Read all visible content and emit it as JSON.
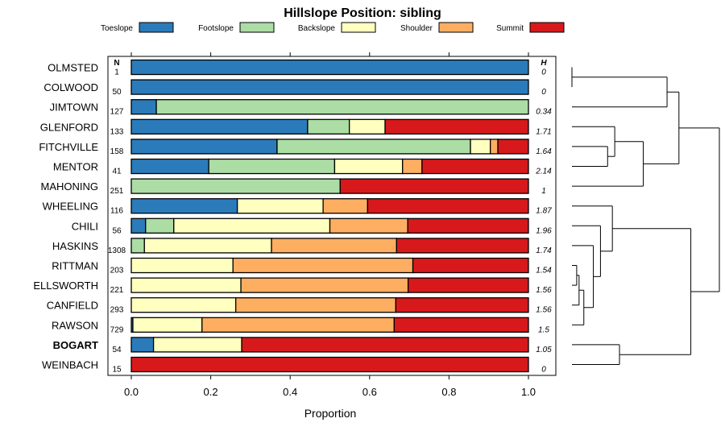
{
  "chart_data": {
    "type": "stacked-bar-horizontal",
    "title": "Hillslope Position: sibling",
    "xlabel": "Proportion",
    "xlim": [
      0,
      1
    ],
    "xticks": [
      "0.0",
      "0.2",
      "0.4",
      "0.6",
      "0.8",
      "1.0"
    ],
    "n_header": "N",
    "h_header": "H",
    "legend": [
      {
        "name": "Toeslope",
        "color": "#2b7bba"
      },
      {
        "name": "Footslope",
        "color": "#abdda4"
      },
      {
        "name": "Backslope",
        "color": "#ffffbf"
      },
      {
        "name": "Shoulder",
        "color": "#fdae61"
      },
      {
        "name": "Summit",
        "color": "#d7191c"
      }
    ],
    "rows": [
      {
        "label": "OLMSTED",
        "bold": false,
        "n": "1",
        "h": "0",
        "values": [
          1.0,
          0,
          0,
          0,
          0
        ]
      },
      {
        "label": "COLWOOD",
        "bold": false,
        "n": "50",
        "h": "0",
        "values": [
          1.0,
          0,
          0,
          0,
          0
        ]
      },
      {
        "label": "JIMTOWN",
        "bold": false,
        "n": "127",
        "h": "0.34",
        "values": [
          0.063,
          0.937,
          0,
          0,
          0
        ]
      },
      {
        "label": "GLENFORD",
        "bold": false,
        "n": "133",
        "h": "1.71",
        "values": [
          0.444,
          0.105,
          0.09,
          0,
          0.361
        ]
      },
      {
        "label": "FITCHVILLE",
        "bold": false,
        "n": "158",
        "h": "1.64",
        "values": [
          0.367,
          0.487,
          0.05,
          0.019,
          0.077
        ]
      },
      {
        "label": "MENTOR",
        "bold": false,
        "n": "41",
        "h": "2.14",
        "values": [
          0.195,
          0.317,
          0.171,
          0.049,
          0.268
        ]
      },
      {
        "label": "MAHONING",
        "bold": false,
        "n": "251",
        "h": "1",
        "values": [
          0,
          0.526,
          0,
          0,
          0.474
        ]
      },
      {
        "label": "WHEELING",
        "bold": false,
        "n": "116",
        "h": "1.87",
        "values": [
          0.267,
          0,
          0.216,
          0.112,
          0.405
        ]
      },
      {
        "label": "CHILI",
        "bold": false,
        "n": "56",
        "h": "1.96",
        "values": [
          0.036,
          0.071,
          0.393,
          0.196,
          0.304
        ]
      },
      {
        "label": "HASKINS",
        "bold": false,
        "n": "1308",
        "h": "1.74",
        "values": [
          0,
          0.033,
          0.32,
          0.315,
          0.332
        ]
      },
      {
        "label": "RITTMAN",
        "bold": false,
        "n": "203",
        "h": "1.54",
        "values": [
          0,
          0,
          0.256,
          0.453,
          0.291
        ]
      },
      {
        "label": "ELLSWORTH",
        "bold": false,
        "n": "221",
        "h": "1.56",
        "values": [
          0,
          0,
          0.276,
          0.421,
          0.303
        ]
      },
      {
        "label": "CANFIELD",
        "bold": false,
        "n": "293",
        "h": "1.56",
        "values": [
          0,
          0,
          0.263,
          0.403,
          0.334
        ]
      },
      {
        "label": "RAWSON",
        "bold": false,
        "n": "729",
        "h": "1.5",
        "values": [
          0.004,
          0,
          0.174,
          0.484,
          0.338
        ]
      },
      {
        "label": "BOGART",
        "bold": true,
        "n": "54",
        "h": "1.05",
        "values": [
          0.056,
          0,
          0.222,
          0,
          0.722
        ]
      },
      {
        "label": "WEINBACH",
        "bold": false,
        "n": "15",
        "h": "0",
        "values": [
          0,
          0,
          0,
          0,
          1.0
        ]
      }
    ],
    "dendrogram": {
      "orientation": "right",
      "merges": [
        {
          "left": "OLMSTED",
          "right": "COLWOOD",
          "height": 0.0
        },
        {
          "left": "FITCHVILLE",
          "right": "MENTOR",
          "height": 0.15
        },
        {
          "left": "GLENFORD",
          "right": "FITCHVILLE+MENTOR",
          "height": 0.18
        },
        {
          "left": "GLENFORD+",
          "right": "MAHONING",
          "height": 0.3
        },
        {
          "left": "OLMSTED+COLWOOD",
          "right": "JIMTOWN",
          "height": 0.4
        },
        {
          "left": "OLMSTED+",
          "right": "GLENFORD+",
          "height": 0.45
        },
        {
          "left": "RITTMAN",
          "right": "ELLSWORTH",
          "height": 0.02
        },
        {
          "left": "RITTMAN+ELLSWORTH",
          "right": "CANFIELD",
          "height": 0.03
        },
        {
          "left": "RITTMAN+",
          "right": "RAWSON",
          "height": 0.05
        },
        {
          "left": "HASKINS",
          "right": "RITTMAN+",
          "height": 0.09
        },
        {
          "left": "CHILI",
          "right": "HASKINS+",
          "height": 0.12
        },
        {
          "left": "WHEELING",
          "right": "CHILI+",
          "height": 0.17
        },
        {
          "left": "BOGART",
          "right": "WEINBACH",
          "height": 0.2
        },
        {
          "left": "WHEELING+",
          "right": "BOGART+",
          "height": 0.5
        },
        {
          "left": "OLMSTED-cluster",
          "right": "WHEELING-cluster",
          "height": 0.62
        }
      ]
    }
  }
}
